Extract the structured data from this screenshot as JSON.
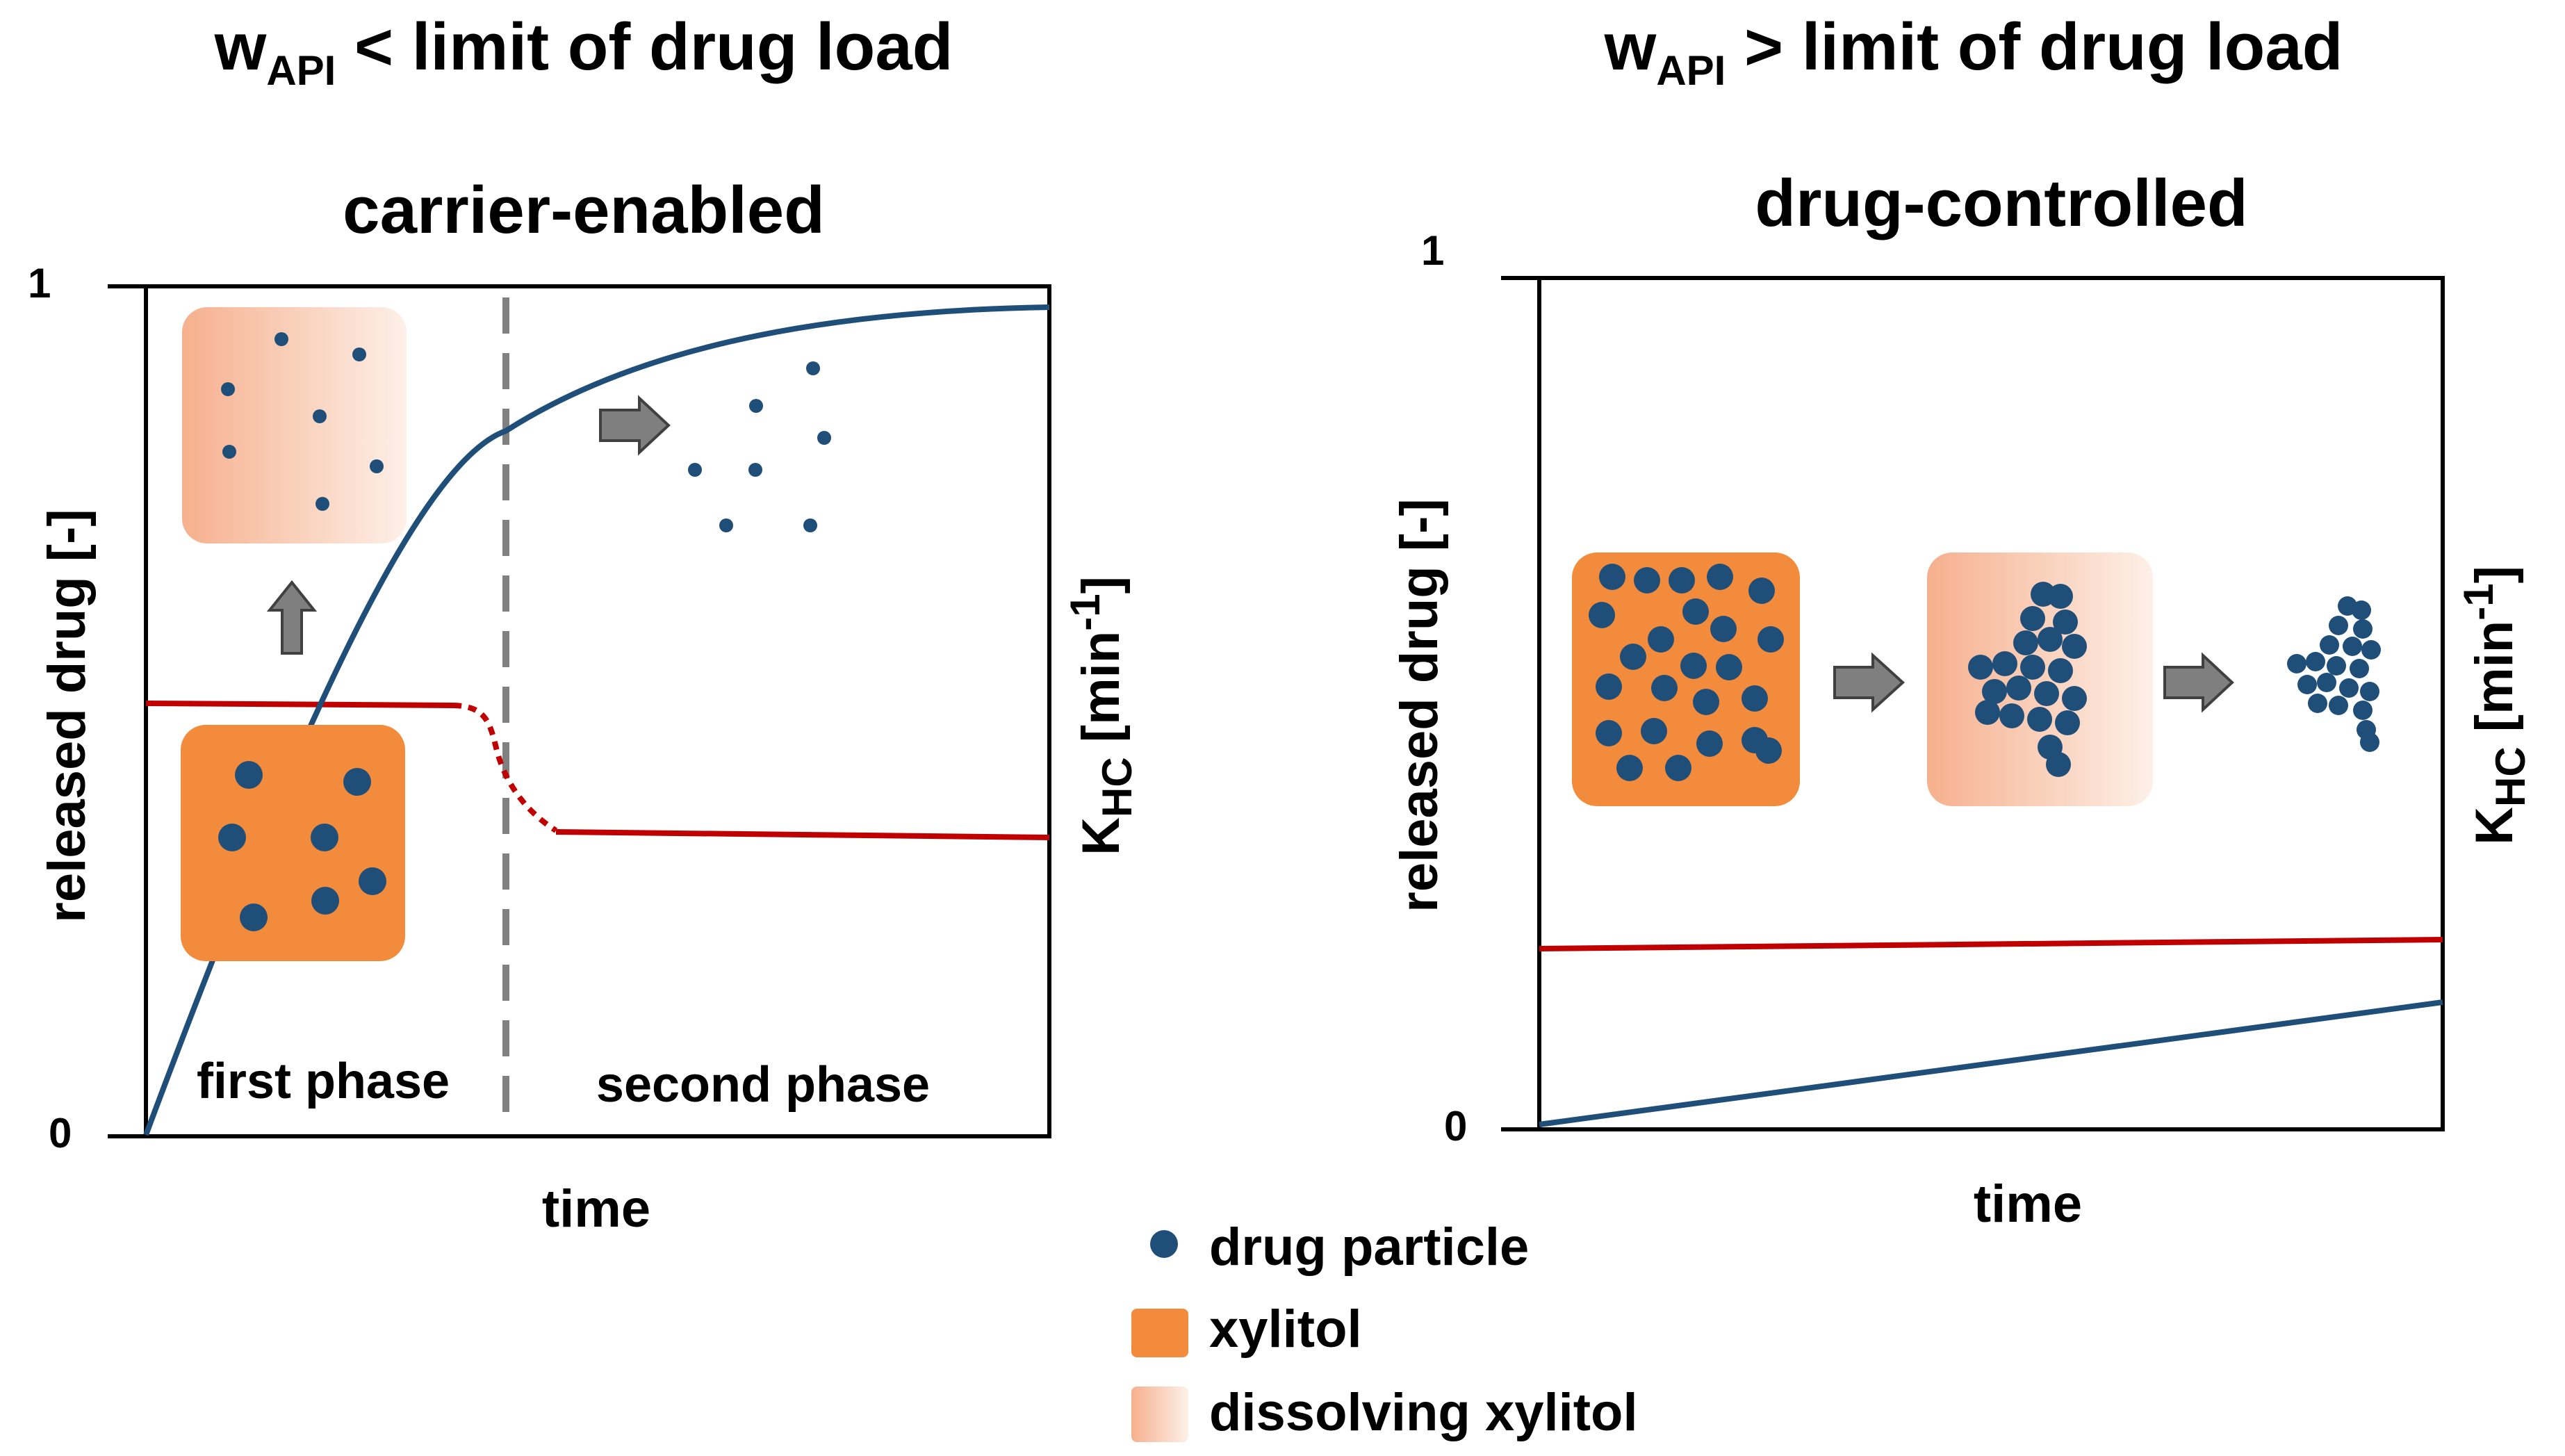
{
  "colors": {
    "drug": "#1f4e79",
    "kinetic": "#c00000",
    "xylitol": "#f28c3c",
    "dissolving_start": "#f6b08e",
    "dissolving_end": "#fdf0e8",
    "arrow": "#7f7f7f",
    "divider": "#808080"
  },
  "left_panel": {
    "header_base": "w",
    "header_sub": "API",
    "header_rest": " < limit of drug load",
    "mode": "carrier-enabled",
    "y_top": "1",
    "y_bottom": "0",
    "y_label": "released drug [-]",
    "y2_label_base": "K",
    "y2_label_sub": "HC",
    "y2_label_unit": " [min",
    "y2_label_exp": "-1",
    "y2_label_close": "]",
    "x_label": "time",
    "phase_1": "first phase",
    "phase_2": "second phase"
  },
  "right_panel": {
    "header_base": "w",
    "header_sub": "API",
    "header_rest": " > limit of drug load",
    "mode": "drug-controlled",
    "y_top": "1",
    "y_bottom": "0",
    "y_label": "released drug [-]",
    "y2_label_base": "K",
    "y2_label_sub": "HC",
    "y2_label_unit": " [min",
    "y2_label_exp": "-1",
    "y2_label_close": "]",
    "x_label": "time"
  },
  "legend": {
    "drug_particle": "drug particle",
    "xylitol": "xylitol",
    "dissolving_xylitol": "dissolving xylitol"
  }
}
